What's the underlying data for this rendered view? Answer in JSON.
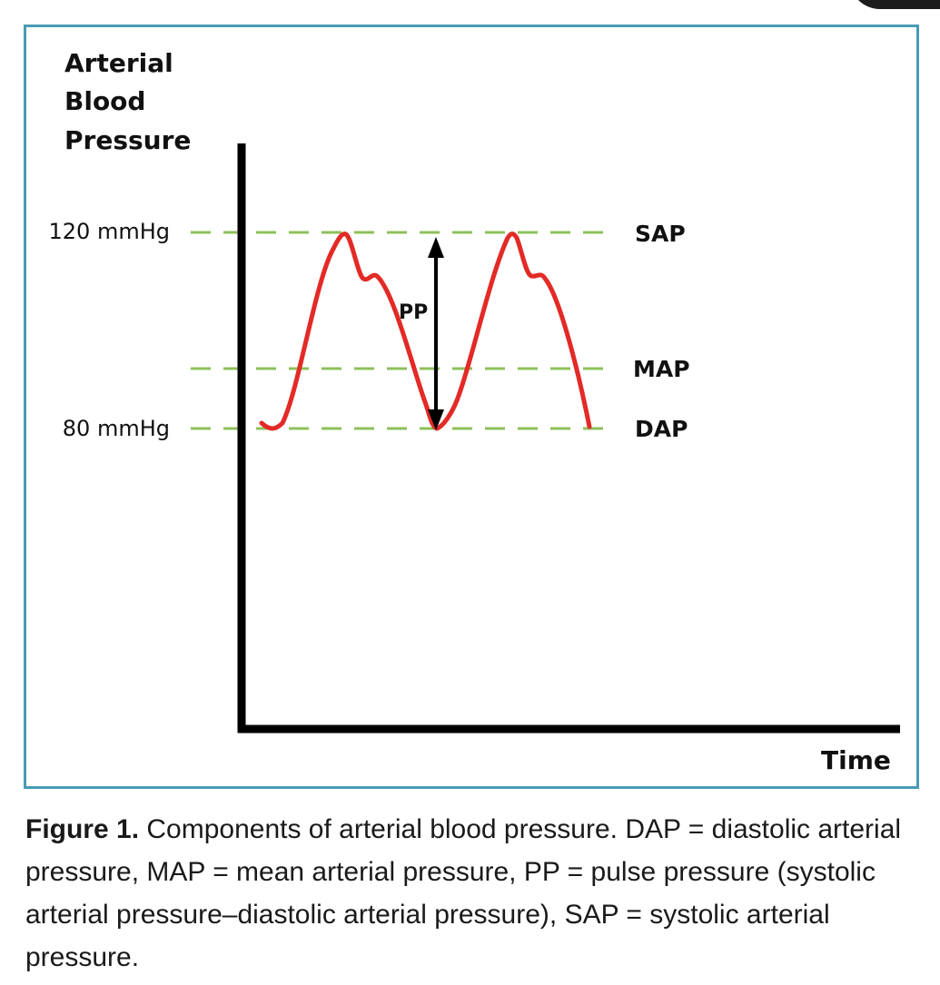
{
  "diagram": {
    "y_axis_title_lines": [
      "Arterial",
      "Blood",
      "Pressure"
    ],
    "x_axis_title": "Time",
    "y_ticks": [
      {
        "label": "120 mmHg",
        "value": 120
      },
      {
        "label": "80 mmHg",
        "value": 80
      }
    ],
    "reference_lines": [
      {
        "label": "SAP",
        "value": 120
      },
      {
        "label": "MAP",
        "value": 93
      },
      {
        "label": "DAP",
        "value": 80
      }
    ],
    "pulse_pressure_label": "PP",
    "colors": {
      "waveform": "#e32a26",
      "reference_line": "#8dc05a",
      "axis": "#000000",
      "frame": "#4a9bb5"
    }
  },
  "caption": {
    "figure_label": "Figure 1.",
    "text": " Components of arterial blood pressure. DAP = diastolic arterial pressure, MAP = mean arterial pressure, PP = pulse pressure (systolic arterial pressure–diastolic arterial pressure), SAP = systolic arterial pressure."
  }
}
